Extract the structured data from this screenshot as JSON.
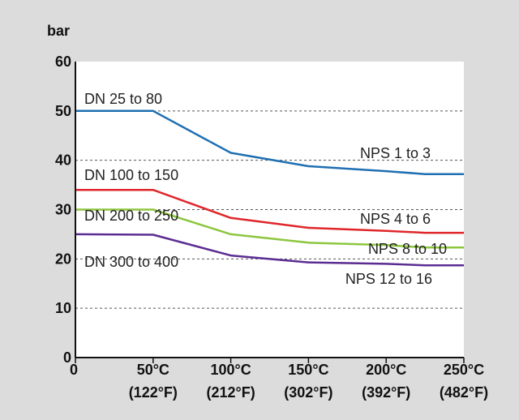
{
  "chart_data": {
    "type": "line",
    "ylabel": "bar",
    "ylim": [
      0,
      60
    ],
    "yticks": [
      0,
      10,
      20,
      30,
      40,
      50,
      60
    ],
    "xlim": [
      0,
      250
    ],
    "xticks": [
      {
        "value": 0,
        "label": "0",
        "sublabel": ""
      },
      {
        "value": 50,
        "label": "50°C",
        "sublabel": "(122°F)"
      },
      {
        "value": 100,
        "label": "100°C",
        "sublabel": "(212°F)"
      },
      {
        "value": 150,
        "label": "150°C",
        "sublabel": "(302°F)"
      },
      {
        "value": 200,
        "label": "200°C",
        "sublabel": "(392°F)"
      },
      {
        "value": 250,
        "label": "250°C",
        "sublabel": "(482°F)"
      }
    ],
    "grid": "horizontal-dashed",
    "series": [
      {
        "color": "#1f6fb2",
        "left_label": "DN 25 to 80",
        "right_label": "NPS 1 to 3",
        "x": [
          0,
          50,
          100,
          150,
          200,
          225,
          250
        ],
        "y": [
          50,
          50,
          41.5,
          38.8,
          37.8,
          37.2,
          37.2
        ]
      },
      {
        "color": "#e0262a",
        "left_label": "DN 100 to 150",
        "right_label": "NPS 4 to 6",
        "x": [
          0,
          50,
          100,
          150,
          200,
          225,
          250
        ],
        "y": [
          34,
          34,
          28.3,
          26.3,
          25.7,
          25.3,
          25.3
        ]
      },
      {
        "color": "#8dc63f",
        "left_label": "DN 200 to 250",
        "right_label": "NPS 8 to 10",
        "x": [
          0,
          50,
          100,
          150,
          200,
          225,
          250
        ],
        "y": [
          30,
          30,
          25,
          23.3,
          22.8,
          22.3,
          22.3
        ]
      },
      {
        "color": "#5b2c91",
        "left_label": "DN 300 to 400",
        "right_label": "NPS 12 to 16",
        "x": [
          0,
          50,
          100,
          150,
          200,
          225,
          250
        ],
        "y": [
          25,
          24.9,
          20.7,
          19.3,
          19,
          18.7,
          18.7
        ]
      }
    ]
  }
}
